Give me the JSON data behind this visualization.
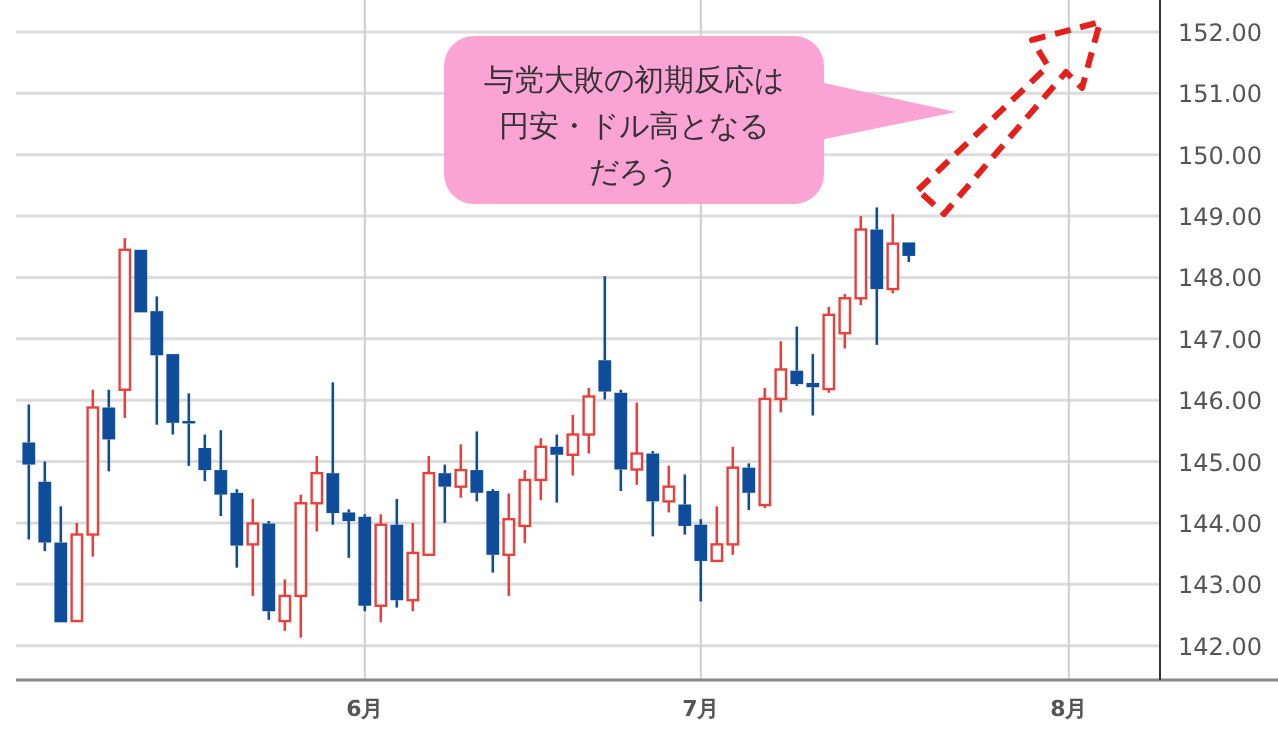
{
  "chart_data": {
    "type": "candlestick",
    "categories": [
      null,
      null,
      null,
      null,
      null,
      null,
      null,
      null,
      null,
      null,
      null,
      null,
      null,
      null,
      null,
      null,
      null,
      null,
      null,
      null,
      null,
      "6月",
      null,
      null,
      null,
      null,
      null,
      null,
      null,
      null,
      null,
      null,
      null,
      null,
      null,
      null,
      null,
      null,
      null,
      null,
      null,
      null,
      "7月",
      null,
      null,
      null,
      null,
      null,
      null,
      null,
      null,
      null,
      null,
      null,
      null,
      null,
      null,
      null,
      null,
      null,
      null,
      null,
      null,
      null,
      null,
      "8月",
      null,
      null,
      null,
      null,
      null
    ],
    "ohlc": [
      [
        145.31,
        145.93,
        143.73,
        144.95
      ],
      [
        144.67,
        145.0,
        143.54,
        143.68
      ],
      [
        143.68,
        144.27,
        142.38,
        142.38
      ],
      [
        142.4,
        144.0,
        142.4,
        143.81
      ],
      [
        143.81,
        146.17,
        143.45,
        145.88
      ],
      [
        145.88,
        146.17,
        144.84,
        145.36
      ],
      [
        146.17,
        148.64,
        145.71,
        148.45
      ],
      [
        148.45,
        148.45,
        147.43,
        147.43
      ],
      [
        147.45,
        147.69,
        145.6,
        146.73
      ],
      [
        146.75,
        146.75,
        145.44,
        145.63
      ],
      [
        145.66,
        146.11,
        144.93,
        145.62
      ],
      [
        145.22,
        145.44,
        144.68,
        144.86
      ],
      [
        144.86,
        145.51,
        144.11,
        144.46
      ],
      [
        144.49,
        144.55,
        143.27,
        143.63
      ],
      [
        143.65,
        144.39,
        142.81,
        143.99
      ],
      [
        143.99,
        144.03,
        142.42,
        142.56
      ],
      [
        142.4,
        143.08,
        142.24,
        142.81
      ],
      [
        142.81,
        144.46,
        142.13,
        144.32
      ],
      [
        144.32,
        145.09,
        143.86,
        144.81
      ],
      [
        144.81,
        146.29,
        143.97,
        144.16
      ],
      [
        144.17,
        144.22,
        143.43,
        144.03
      ],
      [
        144.1,
        144.14,
        142.56,
        142.65
      ],
      [
        142.65,
        144.14,
        142.38,
        143.97
      ],
      [
        143.97,
        144.39,
        142.62,
        142.74
      ],
      [
        142.74,
        144.0,
        142.56,
        143.51
      ],
      [
        143.48,
        145.09,
        143.48,
        144.81
      ],
      [
        144.81,
        144.95,
        144.0,
        144.59
      ],
      [
        144.59,
        145.28,
        144.41,
        144.86
      ],
      [
        144.86,
        145.49,
        144.35,
        144.49
      ],
      [
        144.52,
        144.55,
        143.19,
        143.48
      ],
      [
        143.48,
        144.48,
        142.81,
        144.06
      ],
      [
        143.95,
        144.86,
        143.67,
        144.7
      ],
      [
        144.7,
        145.38,
        144.37,
        145.24
      ],
      [
        145.24,
        145.44,
        144.33,
        145.11
      ],
      [
        145.11,
        145.76,
        144.77,
        145.44
      ],
      [
        145.44,
        146.2,
        145.13,
        146.06
      ],
      [
        146.65,
        148.02,
        146.01,
        146.14
      ],
      [
        146.12,
        146.17,
        144.52,
        144.87
      ],
      [
        144.87,
        145.96,
        144.62,
        145.13
      ],
      [
        145.13,
        145.17,
        143.78,
        144.35
      ],
      [
        144.35,
        144.93,
        144.17,
        144.59
      ],
      [
        144.3,
        144.79,
        143.81,
        143.95
      ],
      [
        143.97,
        144.06,
        142.72,
        143.38
      ],
      [
        143.38,
        144.27,
        143.38,
        143.65
      ],
      [
        143.65,
        145.24,
        143.48,
        144.9
      ],
      [
        144.9,
        144.97,
        144.21,
        144.49
      ],
      [
        144.29,
        146.2,
        144.24,
        146.02
      ],
      [
        146.02,
        146.96,
        145.8,
        146.5
      ],
      [
        146.48,
        147.2,
        146.23,
        146.26
      ],
      [
        146.28,
        146.75,
        145.75,
        146.21
      ],
      [
        146.18,
        147.52,
        146.12,
        147.39
      ],
      [
        147.09,
        147.73,
        146.84,
        147.66
      ],
      [
        147.66,
        149.0,
        147.55,
        148.78
      ],
      [
        148.78,
        149.14,
        146.9,
        147.81
      ],
      [
        147.81,
        149.03,
        147.74,
        148.55
      ],
      [
        148.57,
        148.57,
        148.25,
        148.35
      ],
      null,
      null,
      null,
      null,
      null,
      null,
      null,
      null,
      null,
      null,
      null,
      null,
      null,
      null,
      null
    ],
    "colors": [
      "#0f4c9a",
      "#0f4c9a",
      "#0f4c9a",
      "#e8413c",
      "#e8413c",
      "#0f4c9a",
      "#e8413c",
      "#0f4c9a",
      "#0f4c9a",
      "#0f4c9a",
      "#0f4c9a",
      "#0f4c9a",
      "#0f4c9a",
      "#0f4c9a",
      "#e8413c",
      "#0f4c9a",
      "#e8413c",
      "#e8413c",
      "#e8413c",
      "#0f4c9a",
      "#0f4c9a",
      "#0f4c9a",
      "#e8413c",
      "#0f4c9a",
      "#e8413c",
      "#e8413c",
      "#0f4c9a",
      "#e8413c",
      "#0f4c9a",
      "#0f4c9a",
      "#e8413c",
      "#e8413c",
      "#e8413c",
      "#0f4c9a",
      "#e8413c",
      "#e8413c",
      "#0f4c9a",
      "#0f4c9a",
      "#e8413c",
      "#0f4c9a",
      "#e8413c",
      "#0f4c9a",
      "#0f4c9a",
      "#e8413c",
      "#e8413c",
      "#0f4c9a",
      "#e8413c",
      "#e8413c",
      "#0f4c9a",
      "#0f4c9a",
      "#e8413c",
      "#e8413c",
      "#e8413c",
      "#0f4c9a",
      "#e8413c",
      "#0f4c9a",
      null,
      null,
      null,
      null,
      null,
      null,
      null,
      null,
      null,
      null,
      null,
      null,
      null,
      null,
      null
    ],
    "ylim": [
      141.44,
      152.52
    ],
    "yticks": [
      {
        "value": 142,
        "label": "142.00"
      },
      {
        "value": 143,
        "label": "143.00"
      },
      {
        "value": 144,
        "label": "144.00"
      },
      {
        "value": 145,
        "label": "145.00"
      },
      {
        "value": 146,
        "label": "146.00"
      },
      {
        "value": 147,
        "label": "147.00"
      },
      {
        "value": 148,
        "label": "148.00"
      },
      {
        "value": 149,
        "label": "149.00"
      },
      {
        "value": 150,
        "label": "150.00"
      },
      {
        "value": 151,
        "label": "151.00"
      },
      {
        "value": 152,
        "label": "152.00"
      }
    ],
    "grid": true,
    "annotations": [
      "与党大敗の初期反応は",
      "円安・ドル高となる",
      "だろう"
    ]
  }
}
